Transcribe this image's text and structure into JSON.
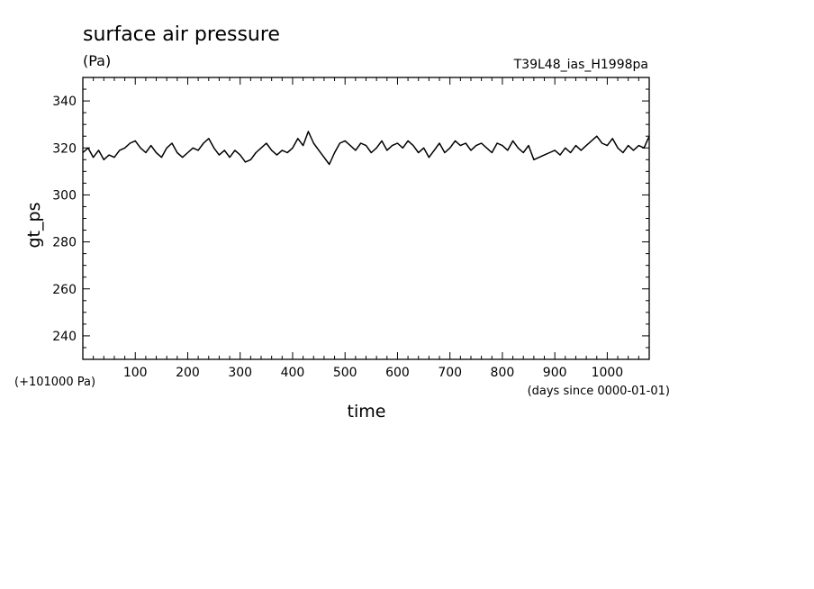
{
  "chart_data": {
    "type": "line",
    "title": "surface air pressure",
    "units": "(Pa)",
    "experiment": "T39L48_ias_H1998pa",
    "xlabel": "time",
    "x_units_note": "(days since 0000-01-01)",
    "ylabel": "gt_ps",
    "y_offset_note": "(+101000 Pa)",
    "xlim": [
      0,
      1080
    ],
    "ylim": [
      230,
      350
    ],
    "x_ticks": [
      100,
      200,
      300,
      400,
      500,
      600,
      700,
      800,
      900,
      1000
    ],
    "y_ticks": [
      240,
      260,
      280,
      300,
      320,
      340
    ],
    "grid": false,
    "legend": "none",
    "line_color": "#000000",
    "series": [
      {
        "x": [
          0,
          10,
          20,
          30,
          40,
          50,
          60,
          70,
          80,
          90,
          100,
          110,
          120,
          130,
          140,
          150,
          160,
          170,
          180,
          190,
          200,
          210,
          220,
          230,
          240,
          250,
          260,
          270,
          280,
          290,
          300,
          310,
          320,
          330,
          340,
          350,
          360,
          370,
          380,
          390,
          400,
          410,
          420,
          430,
          440,
          450,
          460,
          470,
          480,
          490,
          500,
          510,
          520,
          530,
          540,
          550,
          560,
          570,
          580,
          590,
          600,
          610,
          620,
          630,
          640,
          650,
          660,
          670,
          680,
          690,
          700,
          710,
          720,
          730,
          740,
          750,
          760,
          770,
          780,
          790,
          800,
          810,
          820,
          830,
          840,
          850,
          860,
          870,
          880,
          890,
          900,
          910,
          920,
          930,
          940,
          950,
          960,
          970,
          980,
          990,
          1000,
          1010,
          1020,
          1030,
          1040,
          1050,
          1060,
          1070,
          1080
        ],
        "values": [
          318,
          320,
          316,
          319,
          315,
          317,
          316,
          319,
          320,
          322,
          323,
          320,
          318,
          321,
          318,
          316,
          320,
          322,
          318,
          316,
          318,
          320,
          319,
          322,
          324,
          320,
          317,
          319,
          316,
          319,
          317,
          314,
          315,
          318,
          320,
          322,
          319,
          317,
          319,
          318,
          320,
          324,
          321,
          327,
          322,
          319,
          316,
          313,
          318,
          322,
          323,
          321,
          319,
          322,
          321,
          318,
          320,
          323,
          319,
          321,
          322,
          320,
          323,
          321,
          318,
          320,
          316,
          319,
          322,
          318,
          320,
          323,
          321,
          322,
          319,
          321,
          322,
          320,
          318,
          322,
          321,
          319,
          323,
          320,
          318,
          321,
          315,
          316,
          317,
          318,
          319,
          317,
          320,
          318,
          321,
          319,
          321,
          323,
          325,
          322,
          321,
          324,
          320,
          318,
          321,
          319,
          321,
          320,
          325
        ]
      }
    ]
  }
}
